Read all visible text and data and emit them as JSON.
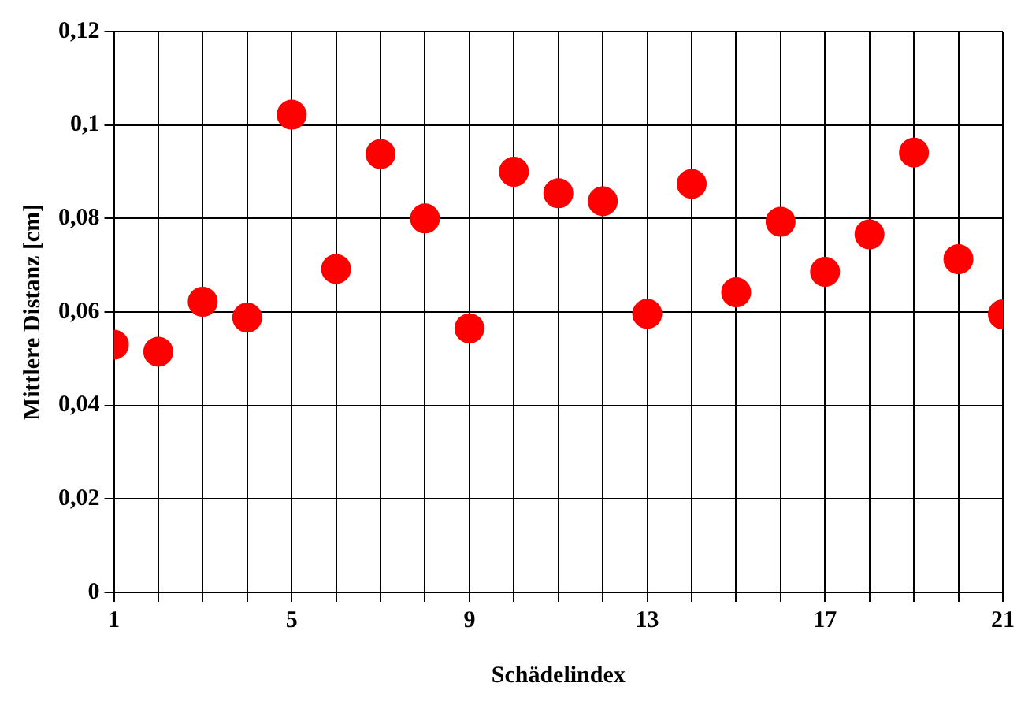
{
  "chart_data": {
    "type": "scatter",
    "xlabel": "Schädelindex",
    "ylabel": "Mittlere Distanz [cm]",
    "x": [
      1,
      2,
      3,
      4,
      5,
      6,
      7,
      8,
      9,
      10,
      11,
      12,
      13,
      14,
      15,
      16,
      17,
      18,
      19,
      20,
      21
    ],
    "values": [
      0.053,
      0.0515,
      0.0622,
      0.0588,
      0.1022,
      0.0692,
      0.0938,
      0.08,
      0.0565,
      0.09,
      0.0854,
      0.0837,
      0.0596,
      0.0874,
      0.0642,
      0.0793,
      0.0686,
      0.0766,
      0.0941,
      0.0713,
      0.0595
    ],
    "color": "#ff0000",
    "marker": "circle",
    "grid": true,
    "xlim": [
      1,
      21
    ],
    "xticks": [
      1,
      {
        "value": 2,
        "label": null
      },
      {
        "value": 3,
        "label": null
      },
      {
        "value": 4,
        "label": null
      },
      5,
      {
        "value": 6,
        "label": null
      },
      {
        "value": 7,
        "label": null
      },
      {
        "value": 8,
        "label": null
      },
      9,
      {
        "value": 10,
        "label": null
      },
      {
        "value": 11,
        "label": null
      },
      {
        "value": 12,
        "label": null
      },
      13,
      {
        "value": 14,
        "label": null
      },
      {
        "value": 15,
        "label": null
      },
      {
        "value": 16,
        "label": null
      },
      17,
      {
        "value": 18,
        "label": null
      },
      {
        "value": 19,
        "label": null
      },
      {
        "value": 20,
        "label": null
      },
      21
    ],
    "ylim": [
      0,
      0.12
    ],
    "yticks": [
      0,
      {
        "value": 0.02,
        "label": "0,02"
      },
      {
        "value": 0.04,
        "label": "0,04"
      },
      {
        "value": 0.06,
        "label": "0,06"
      },
      {
        "value": 0.08,
        "label": "0,08"
      },
      {
        "value": 0.1,
        "label": "0,1"
      },
      {
        "value": 0.12,
        "label": "0,12"
      }
    ]
  }
}
